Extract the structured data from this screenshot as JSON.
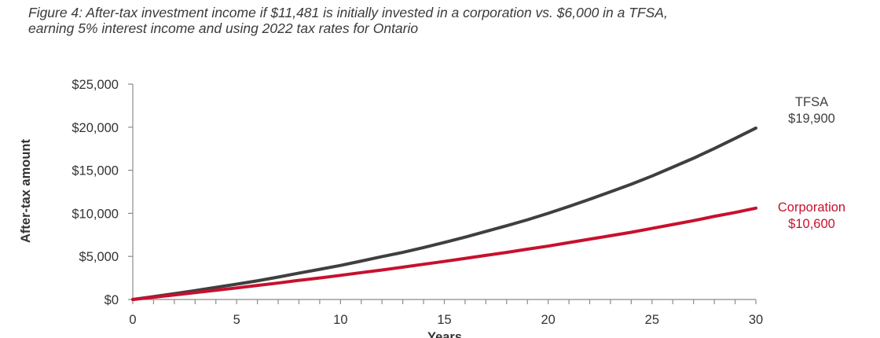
{
  "caption": {
    "line1": "Figure 4: After-tax investment income if $11,481 is initially invested in a corporation vs. $6,000 in a TFSA,",
    "line2": "earning 5% interest income and using 2022 tax rates for Ontario"
  },
  "colors": {
    "tfsa": "#3f3f3f",
    "corporation": "#c8102e",
    "axis": "#8c8c8c",
    "text": "#333333"
  },
  "chart_data": {
    "type": "line",
    "title": "Figure 4: After-tax investment income if $11,481 is initially invested in a corporation vs. $6,000 in a TFSA, earning 5% interest income and using 2022 tax rates for Ontario",
    "xlabel": "Years",
    "ylabel": "After-tax amount",
    "xlim": [
      0,
      30
    ],
    "ylim": [
      0,
      25000
    ],
    "x_ticks": [
      "0",
      "5",
      "10",
      "15",
      "20",
      "25",
      "30"
    ],
    "y_ticks": [
      "$0",
      "$5,000",
      "$10,000",
      "$15,000",
      "$20,000",
      "$25,000"
    ],
    "grid": false,
    "x": [
      0,
      1,
      2,
      3,
      4,
      5,
      6,
      7,
      8,
      9,
      10,
      11,
      12,
      13,
      14,
      15,
      16,
      17,
      18,
      19,
      20,
      21,
      22,
      23,
      24,
      25,
      26,
      27,
      28,
      29,
      30
    ],
    "series": [
      {
        "name": "TFSA",
        "end_label": "$19,900",
        "values": [
          0,
          330,
          670,
          1030,
          1410,
          1780,
          2170,
          2600,
          3060,
          3500,
          3950,
          4460,
          4980,
          5470,
          6030,
          6620,
          7240,
          7900,
          8560,
          9250,
          10000,
          10800,
          11630,
          12500,
          13380,
          14330,
          15360,
          16400,
          17520,
          18700,
          19900
        ]
      },
      {
        "name": "Corporation",
        "end_label": "$10,600",
        "values": [
          0,
          260,
          520,
          800,
          1070,
          1340,
          1630,
          1910,
          2220,
          2500,
          2800,
          3120,
          3420,
          3750,
          4090,
          4420,
          4770,
          5120,
          5460,
          5840,
          6200,
          6600,
          7000,
          7400,
          7800,
          8250,
          8700,
          9150,
          9650,
          10100,
          10600
        ]
      }
    ]
  }
}
